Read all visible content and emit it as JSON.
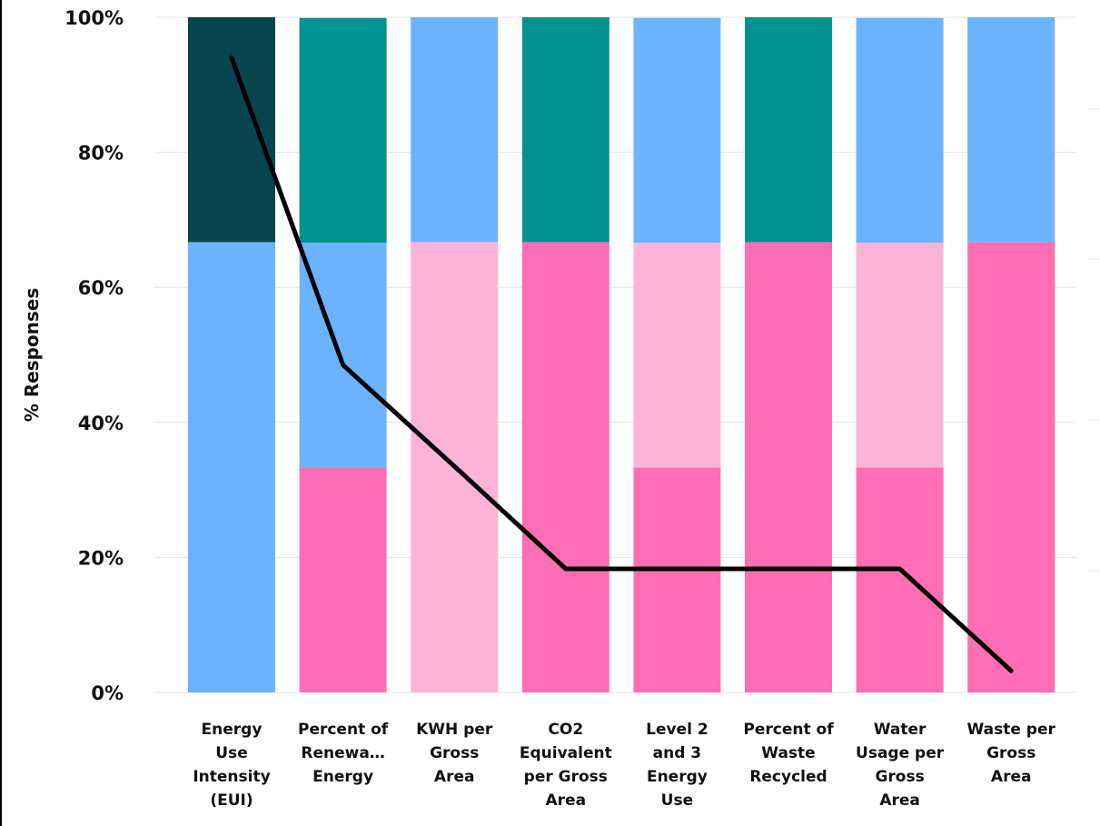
{
  "chart_data": {
    "type": "bar",
    "stacked": true,
    "percent_stacked": true,
    "categories": [
      [
        "Energy",
        "Use",
        "Intensity",
        "(EUI)"
      ],
      [
        "Percent of",
        "Renewa…",
        "Energy"
      ],
      [
        "KWH per",
        "Gross",
        "Area"
      ],
      [
        "CO2",
        "Equivalent",
        "per Gross",
        "Area"
      ],
      [
        "Level 2",
        "and 3",
        "Energy",
        "Use"
      ],
      [
        "Percent of",
        "Waste",
        "Recycled"
      ],
      [
        "Water",
        "Usage per",
        "Gross",
        "Area"
      ],
      [
        "Waste per",
        "Gross",
        "Area"
      ]
    ],
    "series": [
      {
        "color": "#FF6EB4",
        "values": [
          0,
          33.3,
          0,
          66.7,
          33.3,
          66.7,
          33.3,
          66.7
        ]
      },
      {
        "color": "#FDB3D8",
        "values": [
          0,
          0,
          66.7,
          0,
          33.3,
          0,
          33.3,
          0
        ]
      },
      {
        "color": "#6CB3FF",
        "values": [
          66.7,
          33.3,
          33.3,
          0,
          33.3,
          0,
          33.3,
          33.3
        ]
      },
      {
        "color": "#009290",
        "values": [
          0,
          33.3,
          0,
          33.3,
          0,
          33.3,
          0,
          0
        ]
      },
      {
        "color": "#09454F",
        "values": [
          33.3,
          0,
          0,
          0,
          0,
          0,
          0,
          0
        ]
      }
    ],
    "line_series": {
      "color": "#000000",
      "values": [
        94,
        48.5,
        33.5,
        18.3,
        18.3,
        18.3,
        18.3,
        3.2
      ]
    },
    "ylabel": "% Responses",
    "xlabel": "",
    "ylim": [
      0,
      100
    ],
    "yticks": [
      "0%",
      "20%",
      "40%",
      "60%",
      "80%",
      "100%"
    ],
    "ytick_values": [
      0,
      20,
      40,
      60,
      80,
      100
    ],
    "grid": true,
    "legend": "none"
  }
}
